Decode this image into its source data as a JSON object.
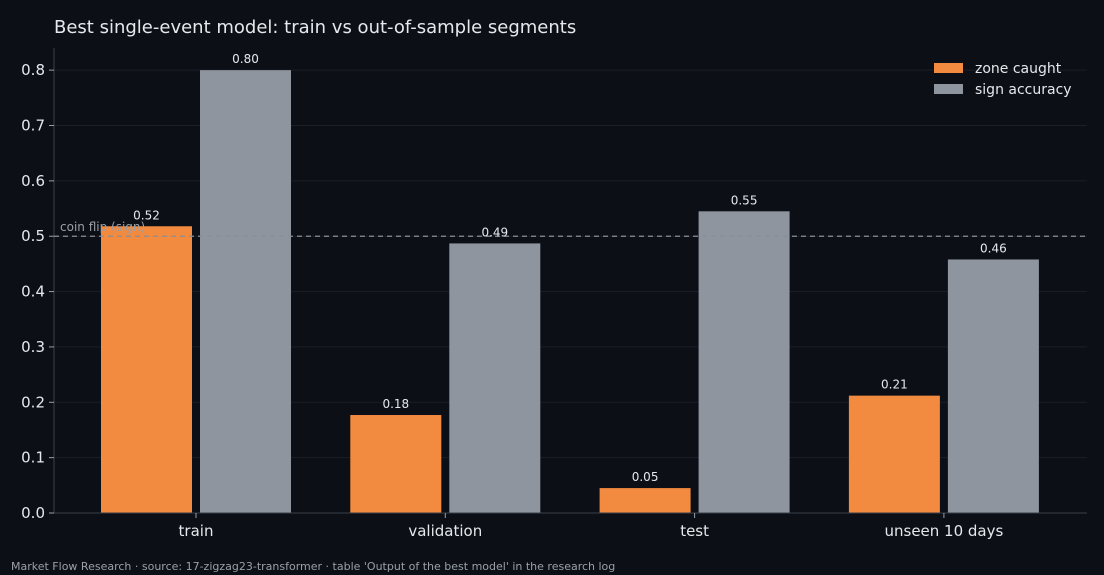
{
  "colors": {
    "background": "#0c0f16",
    "text": "#e6e8ec",
    "muted_text": "#9aa0a8",
    "axis": "#3a3f48",
    "grid": "#1b1f27",
    "reference_line": "#8a8f98",
    "zone_caught": "#f28a3f",
    "sign_accuracy": "#8e959f"
  },
  "footer": "Market Flow Research · source: 17-zigzag23-transformer · table 'Output of the best model' in the research log",
  "chart_data": {
    "type": "bar",
    "title": "Best single-event model: train vs out-of-sample segments",
    "xlabel": "",
    "ylabel": "",
    "categories": [
      "train",
      "validation",
      "test",
      "unseen 10 days"
    ],
    "series": [
      {
        "name": "zone caught",
        "color_key": "zone_caught",
        "values": [
          0.518,
          0.177,
          0.045,
          0.212
        ],
        "labels": [
          "0.52",
          "0.18",
          "0.05",
          "0.21"
        ]
      },
      {
        "name": "sign accuracy",
        "color_key": "sign_accuracy",
        "values": [
          0.8,
          0.487,
          0.545,
          0.458
        ],
        "labels": [
          "0.80",
          "0.49",
          "0.55",
          "0.46"
        ]
      }
    ],
    "ylim": [
      0,
      0.84
    ],
    "yticks": [
      0.0,
      0.1,
      0.2,
      0.3,
      0.4,
      0.5,
      0.6,
      0.7,
      0.8
    ],
    "ytick_labels": [
      "0.0",
      "0.1",
      "0.2",
      "0.3",
      "0.4",
      "0.5",
      "0.6",
      "0.7",
      "0.8"
    ],
    "reference_line": {
      "value": 0.5,
      "label": "coin flip (sign)"
    },
    "grid": true,
    "legend": "top-right"
  }
}
